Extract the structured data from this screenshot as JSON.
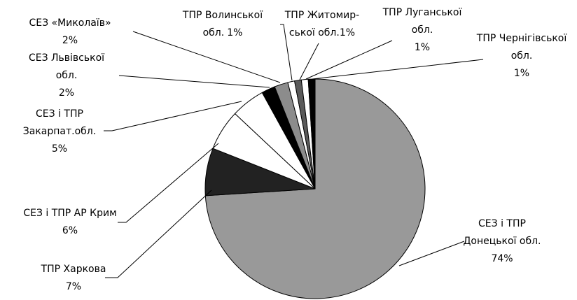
{
  "chart_data": {
    "type": "pie",
    "categories": [
      [
        "СЕЗ і ТПР",
        "Донецької обл."
      ],
      [
        "ТПР Харкова"
      ],
      [
        "СЕЗ і ТПР АР Крим"
      ],
      [
        "СЕЗ і ТПР",
        "Закарпат.обл."
      ],
      [
        "СЕЗ  Львівської",
        "обл."
      ],
      [
        "СЕЗ «Миколаїв»"
      ],
      [
        "ТПР Волинської",
        "обл."
      ],
      [
        "ТПР Житомир-",
        "ської обл."
      ],
      [
        "ТПР Луганської",
        "обл."
      ],
      [
        "ТПР Чернігівської",
        "обл."
      ]
    ],
    "values": [
      74,
      7,
      6,
      5,
      2,
      2,
      1,
      1,
      1,
      1
    ],
    "value_labels": [
      "74%",
      "7%",
      "6%",
      "5%",
      "2%",
      "2%",
      "1%",
      "1%",
      "1%",
      "1%"
    ],
    "colors": [
      "#999999",
      "#222222",
      "#ffffff",
      "#ffffff",
      "#000000",
      "#8c8c8c",
      "#ffffff",
      "#5a5a5a",
      "#ffffff",
      "#000000"
    ]
  }
}
